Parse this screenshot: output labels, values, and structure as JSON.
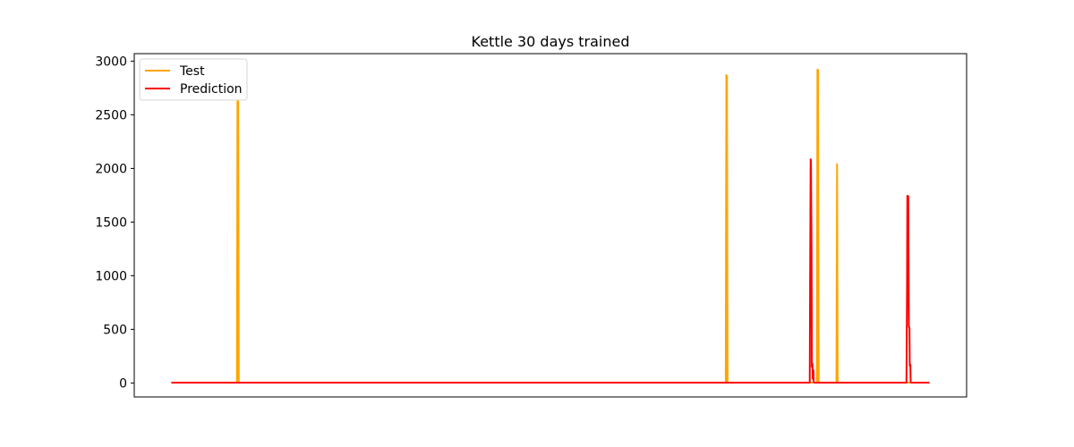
{
  "chart_data": {
    "type": "line",
    "title": "Kettle 30 days trained",
    "xlabel": "",
    "ylabel": "",
    "ylim": [
      -130,
      3070
    ],
    "xlim": [
      -0.05,
      1.05
    ],
    "y_ticks": [
      0,
      500,
      1000,
      1500,
      2000,
      2500,
      3000
    ],
    "y_tick_labels": [
      "0",
      "500",
      "1000",
      "1500",
      "2000",
      "2500",
      "3000"
    ],
    "x_ticks_visible": false,
    "grid": false,
    "legend_position": "top-left",
    "series": [
      {
        "name": "Test",
        "color": "#ffa500",
        "points": [
          [
            0.0,
            3
          ],
          [
            0.0857,
            3
          ],
          [
            0.0865,
            2900
          ],
          [
            0.0873,
            2880
          ],
          [
            0.0881,
            3
          ],
          [
            0.7317,
            3
          ],
          [
            0.7325,
            2870
          ],
          [
            0.7333,
            2860
          ],
          [
            0.7341,
            3
          ],
          [
            0.8521,
            3
          ],
          [
            0.8529,
            2920
          ],
          [
            0.8537,
            2920
          ],
          [
            0.8545,
            3
          ],
          [
            0.878,
            3
          ],
          [
            0.8788,
            2040
          ],
          [
            0.8796,
            3
          ],
          [
            1.0,
            3
          ]
        ]
      },
      {
        "name": "Prediction",
        "color": "#ff0000",
        "points": [
          [
            0.0,
            3
          ],
          [
            0.8427,
            3
          ],
          [
            0.8431,
            800
          ],
          [
            0.8439,
            2085
          ],
          [
            0.8443,
            2075
          ],
          [
            0.8451,
            1200
          ],
          [
            0.8455,
            150
          ],
          [
            0.8463,
            180
          ],
          [
            0.8467,
            40
          ],
          [
            0.8475,
            120
          ],
          [
            0.8479,
            10
          ],
          [
            0.8487,
            3
          ],
          [
            0.9705,
            3
          ],
          [
            0.9713,
            900
          ],
          [
            0.9717,
            1745
          ],
          [
            0.9729,
            1740
          ],
          [
            0.9733,
            1100
          ],
          [
            0.9737,
            530
          ],
          [
            0.9745,
            510
          ],
          [
            0.9749,
            160
          ],
          [
            0.9757,
            170
          ],
          [
            0.9761,
            10
          ],
          [
            0.9769,
            3
          ],
          [
            1.0,
            3
          ]
        ]
      }
    ]
  }
}
